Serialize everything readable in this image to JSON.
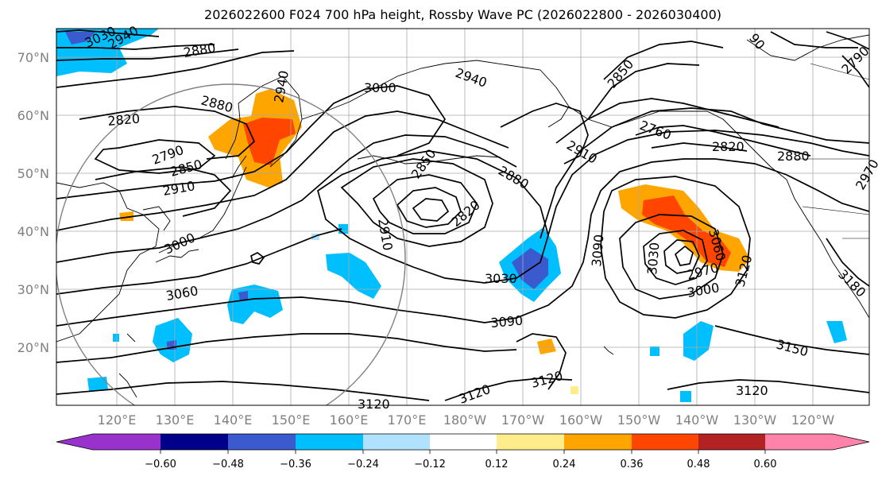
{
  "title": "2026022600 F024 700 hPa height, Rossby Wave PC (2026022800 - 2026030400)",
  "lat_labels": [
    "70°N",
    "60°N",
    "50°N",
    "40°N",
    "30°N",
    "20°N"
  ],
  "lon_labels": [
    "120°E",
    "130°E",
    "140°E",
    "150°E",
    "160°E",
    "170°E",
    "180°W",
    "170°W",
    "160°W",
    "150°W",
    "140°W",
    "130°W",
    "120°W"
  ],
  "contour_labels": [
    {
      "text": "3030",
      "rot": -25
    },
    {
      "text": "2940",
      "rot": -30
    },
    {
      "text": "2880",
      "rot": -10
    },
    {
      "text": "2880",
      "rot": 15
    },
    {
      "text": "2820",
      "rot": -5
    },
    {
      "text": "2790",
      "rot": -20
    },
    {
      "text": "2850",
      "rot": -15
    },
    {
      "text": "2910",
      "rot": -10
    },
    {
      "text": "3000",
      "rot": -25
    },
    {
      "text": "3060",
      "rot": -10
    },
    {
      "text": "2940",
      "rot": -80
    },
    {
      "text": "3000",
      "rot": 0
    },
    {
      "text": "2940",
      "rot": 20
    },
    {
      "text": "2850",
      "rot": -55
    },
    {
      "text": "2910",
      "rot": 80
    },
    {
      "text": "2820",
      "rot": -40
    },
    {
      "text": "2880",
      "rot": 30
    },
    {
      "text": "2910",
      "rot": 30
    },
    {
      "text": "3030",
      "rot": 0
    },
    {
      "text": "3090",
      "rot": -5
    },
    {
      "text": "3120",
      "rot": 0
    },
    {
      "text": "3120",
      "rot": -20
    },
    {
      "text": "3120",
      "rot": -15
    },
    {
      "text": "2850",
      "rot": -50
    },
    {
      "text": "2760",
      "rot": 20
    },
    {
      "text": "2820",
      "rot": 0
    },
    {
      "text": "2880",
      "rot": 0
    },
    {
      "text": "3090",
      "rot": -85
    },
    {
      "text": "3030",
      "rot": -85
    },
    {
      "text": "2970",
      "rot": -15
    },
    {
      "text": "3000",
      "rot": -10
    },
    {
      "text": "3060",
      "rot": 75
    },
    {
      "text": "3120",
      "rot": -75
    },
    {
      "text": "3150",
      "rot": 15
    },
    {
      "text": "3120",
      "rot": 0
    },
    {
      "text": "3180",
      "rot": 45
    },
    {
      "text": "2790",
      "rot": -45
    },
    {
      "text": "2970",
      "rot": -60
    },
    {
      "text": "90",
      "rot": 50
    }
  ],
  "colorbar": {
    "ticks": [
      "−0.60",
      "−0.48",
      "−0.36",
      "−0.24",
      "−0.12",
      "0.12",
      "0.24",
      "0.36",
      "0.48",
      "0.60"
    ],
    "colors": [
      "#9932cc",
      "#00008b",
      "#3a5acd",
      "#00bfff",
      "#b0e2ff",
      "#ffffff",
      "#ffec8b",
      "#ffa500",
      "#ff4500",
      "#b22222",
      "#ff82ab"
    ]
  }
}
